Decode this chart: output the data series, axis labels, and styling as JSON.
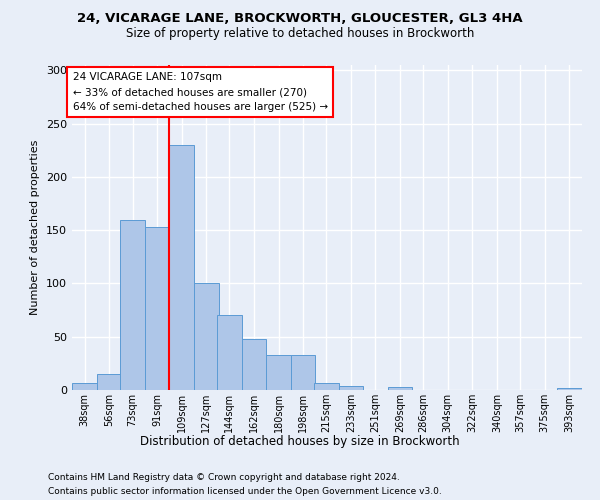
{
  "title1": "24, VICARAGE LANE, BROCKWORTH, GLOUCESTER, GL3 4HA",
  "title2": "Size of property relative to detached houses in Brockworth",
  "xlabel": "Distribution of detached houses by size in Brockworth",
  "ylabel": "Number of detached properties",
  "footnote1": "Contains HM Land Registry data © Crown copyright and database right 2024.",
  "footnote2": "Contains public sector information licensed under the Open Government Licence v3.0.",
  "annotation_title": "24 VICARAGE LANE: 107sqm",
  "annotation_line1": "← 33% of detached houses are smaller (270)",
  "annotation_line2": "64% of semi-detached houses are larger (525) →",
  "property_size": 107,
  "bar_edges": [
    38,
    56,
    73,
    91,
    109,
    127,
    144,
    162,
    180,
    198,
    215,
    233,
    251,
    269,
    286,
    304,
    322,
    340,
    357,
    375,
    393
  ],
  "bar_heights": [
    7,
    15,
    160,
    153,
    230,
    100,
    70,
    48,
    33,
    33,
    7,
    4,
    0,
    3,
    0,
    0,
    0,
    0,
    0,
    0,
    2
  ],
  "bar_color": "#aec6e8",
  "bar_edge_color": "#5b9bd5",
  "vline_color": "red",
  "vline_x": 109,
  "annotation_box_color": "red",
  "bg_color": "#e8eef8",
  "grid_color": "#ffffff",
  "ylim": [
    0,
    305
  ],
  "yticks": [
    0,
    50,
    100,
    150,
    200,
    250,
    300
  ]
}
